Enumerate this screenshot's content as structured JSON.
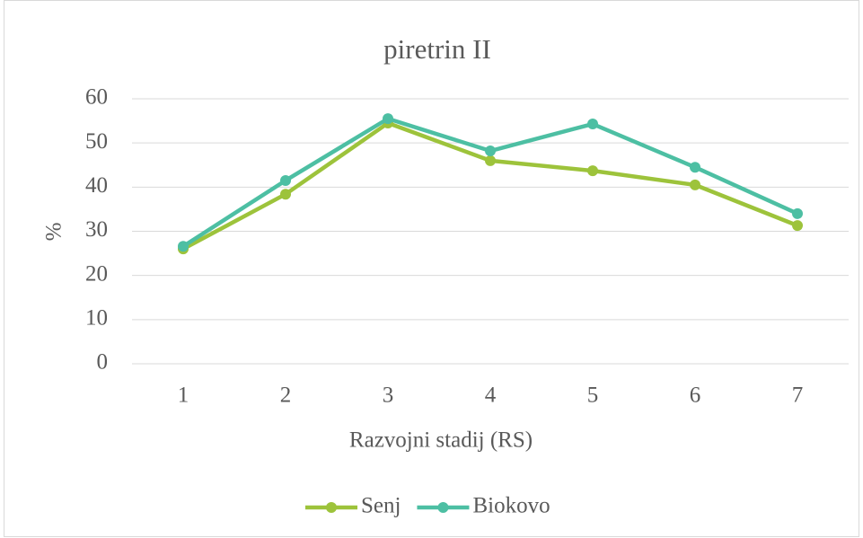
{
  "chart_data": {
    "type": "line",
    "title": "piretrin II",
    "xlabel": "Razvojni stadij (RS)",
    "ylabel": "%",
    "categories": [
      "1",
      "2",
      "3",
      "4",
      "5",
      "6",
      "7"
    ],
    "series": [
      {
        "name": "Senj",
        "color": "#9dc33b",
        "values": [
          26,
          38.4,
          54.5,
          46,
          43.7,
          40.5,
          31.3
        ]
      },
      {
        "name": "Biokovo",
        "color": "#4dbfa3",
        "values": [
          26.6,
          41.5,
          55.5,
          48.2,
          54.3,
          44.5,
          34
        ]
      }
    ],
    "ylim": [
      0,
      60
    ],
    "yticks": [
      0,
      10,
      20,
      30,
      40,
      50,
      60
    ],
    "grid": true,
    "legend": "bottom"
  }
}
